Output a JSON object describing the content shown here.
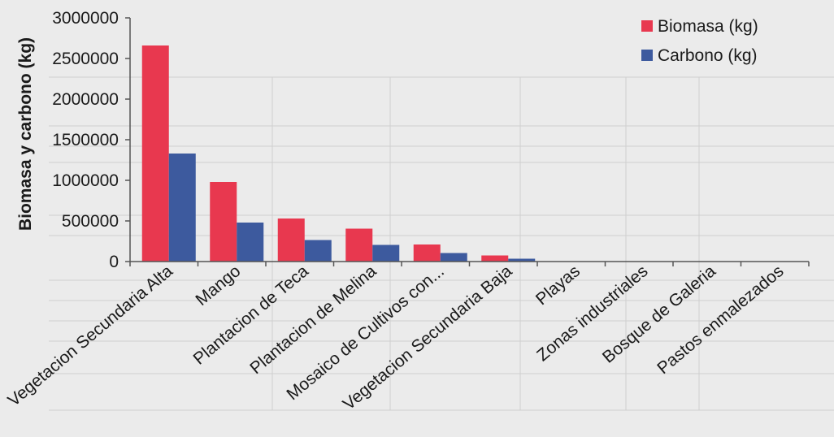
{
  "chart_data": {
    "type": "bar",
    "ylabel": "Biomasa y carbono (kg)",
    "xlabel": "",
    "ylim": [
      0,
      3000000
    ],
    "yticks": [
      0,
      500000,
      1000000,
      1500000,
      2000000,
      2500000,
      3000000
    ],
    "ytick_labels": [
      "0",
      "500000",
      "1000000",
      "1500000",
      "2000000",
      "2500000",
      "3000000"
    ],
    "categories": [
      "Vegetacion Secundaria Alta",
      "Mango",
      "Plantacion de Teca",
      "Plantacion de Melina",
      "Mosaico de Cultivos con...",
      "Vegetacion Secundaria Baja",
      "Playas",
      "Zonas industriales",
      "Bosque de Galeria",
      "Pastos enmalezados"
    ],
    "series": [
      {
        "name": "Biomasa (kg)",
        "color": "#e8384f",
        "values": [
          2660000,
          980000,
          530000,
          405000,
          210000,
          75000,
          0,
          0,
          0,
          0
        ]
      },
      {
        "name": "Carbono (kg)",
        "color": "#3d5a9e",
        "values": [
          1330000,
          480000,
          265000,
          205000,
          105000,
          35000,
          0,
          0,
          0,
          0
        ]
      }
    ],
    "legend_position": "top-right",
    "grid": false
  }
}
